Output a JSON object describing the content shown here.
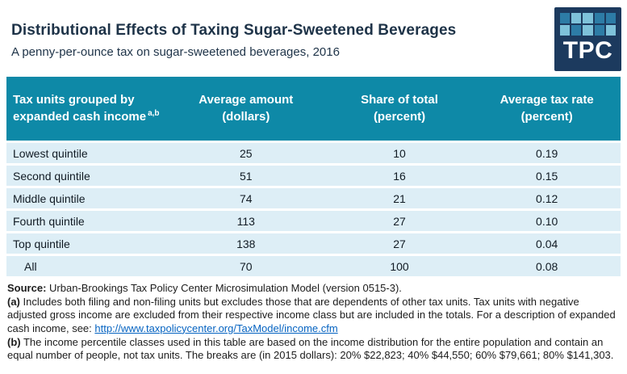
{
  "header": {
    "title": "Distributional Effects of Taxing Sugar-Sweetened Beverages",
    "subtitle": "A penny-per-ounce tax on sugar-sweetened beverages, 2016"
  },
  "logo": {
    "text": "TPC",
    "squares": [
      "m",
      "l",
      "l",
      "m",
      "m",
      "l",
      "m",
      "l",
      "m",
      "l"
    ]
  },
  "table": {
    "header": {
      "col1_line1": "Tax units grouped by",
      "col1_line2": "expanded cash income",
      "col1_sup": "a,b",
      "col2_line1": "Average amount",
      "col2_line2": "(dollars)",
      "col3_line1": "Share of total",
      "col3_line2": "(percent)",
      "col4_line1": "Average tax rate",
      "col4_line2": "(percent)"
    },
    "rows": [
      {
        "label": "Lowest quintile",
        "amount": "25",
        "share": "10",
        "rate": "0.19"
      },
      {
        "label": "Second quintile",
        "amount": "51",
        "share": "16",
        "rate": "0.15"
      },
      {
        "label": "Middle quintile",
        "amount": "74",
        "share": "21",
        "rate": "0.12"
      },
      {
        "label": "Fourth quintile",
        "amount": "113",
        "share": "27",
        "rate": "0.10"
      },
      {
        "label": "Top quintile",
        "amount": "138",
        "share": "27",
        "rate": "0.04"
      },
      {
        "label": "All",
        "amount": "70",
        "share": "100",
        "rate": "0.08"
      }
    ]
  },
  "notes": {
    "source": {
      "prefix": "Source:",
      "text": " Urban-Brookings Tax Policy Center Microsimulation Model (version 0515-3)."
    },
    "a": {
      "prefix": "(a)",
      "text": " Includes both filing and non-filing units but excludes those that are dependents of other tax units. Tax units with negative adjusted gross income are excluded from their respective income class but are included in the totals. For a description of expanded cash income, see: ",
      "link": "http://www.taxpolicycenter.org/TaxModel/income.cfm"
    },
    "b": {
      "prefix": "(b)",
      "text": " The income percentile classes used in this table are based on the income distribution for the entire population and contain an equal number of people, not tax units. The breaks are (in 2015 dollars): 20% $22,823; 40% $44,550; 60% $79,661; 80% $141,303."
    }
  },
  "colors": {
    "header_teal": "#0e89a7",
    "row_light_blue": "#ddeef6",
    "title_navy": "#1e3348",
    "link_blue": "#0563c1",
    "logo_navy": "#1c3a5e",
    "logo_square_medium": "#2d7ca6",
    "logo_square_light": "#7ec2da"
  },
  "chart_data": {
    "type": "table",
    "title": "Distributional Effects of Taxing Sugar-Sweetened Beverages",
    "subtitle": "A penny-per-ounce tax on sugar-sweetened beverages, 2016",
    "columns": [
      "Tax units grouped by expanded cash income",
      "Average amount (dollars)",
      "Share of total (percent)",
      "Average tax rate (percent)"
    ],
    "rows": [
      [
        "Lowest quintile",
        25,
        10,
        0.19
      ],
      [
        "Second quintile",
        51,
        16,
        0.15
      ],
      [
        "Middle quintile",
        74,
        21,
        0.12
      ],
      [
        "Fourth quintile",
        113,
        27,
        0.1
      ],
      [
        "Top quintile",
        138,
        27,
        0.04
      ],
      [
        "All",
        70,
        100,
        0.08
      ]
    ]
  }
}
